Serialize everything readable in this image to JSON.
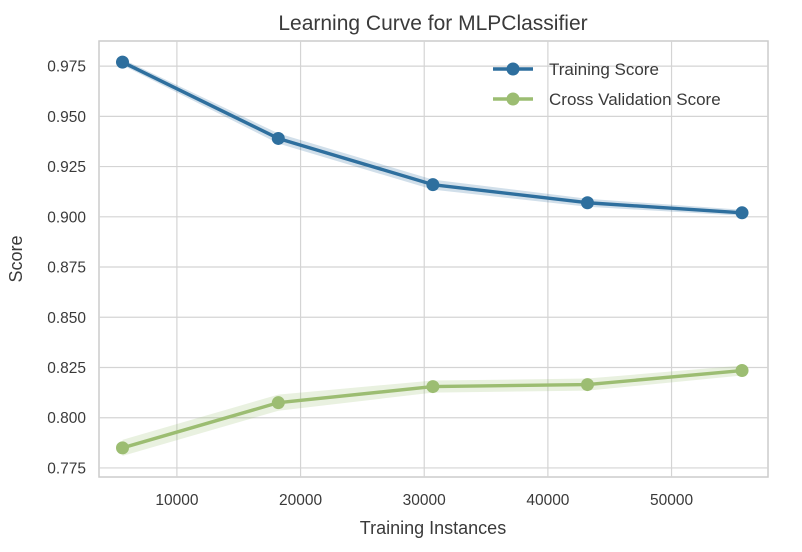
{
  "chart_data": {
    "type": "line",
    "title": "Learning Curve for MLPClassifier",
    "xlabel": "Training Instances",
    "ylabel": "Score",
    "xlim": [
      3700,
      57800
    ],
    "ylim": [
      0.7705,
      0.9875
    ],
    "x_ticks": [
      10000,
      20000,
      30000,
      40000,
      50000
    ],
    "y_ticks": [
      0.775,
      0.8,
      0.825,
      0.85,
      0.875,
      0.9,
      0.925,
      0.95,
      0.975
    ],
    "y_tick_labels": [
      "0.775",
      "0.800",
      "0.825",
      "0.850",
      "0.875",
      "0.900",
      "0.925",
      "0.950",
      "0.975"
    ],
    "x": [
      5600,
      18200,
      30700,
      43200,
      55700
    ],
    "grid": true,
    "legend_position": "top-right",
    "series": [
      {
        "name": "Training Score",
        "color": "#2e6f9e",
        "values": [
          0.977,
          0.939,
          0.916,
          0.907,
          0.902
        ],
        "band": [
          0.0015,
          0.0025,
          0.0025,
          0.002,
          0.0015
        ]
      },
      {
        "name": "Cross Validation Score",
        "color": "#9cbd72",
        "values": [
          0.785,
          0.8075,
          0.8155,
          0.8165,
          0.8235
        ],
        "band": [
          0.004,
          0.004,
          0.003,
          0.003,
          0.0025
        ]
      }
    ]
  }
}
